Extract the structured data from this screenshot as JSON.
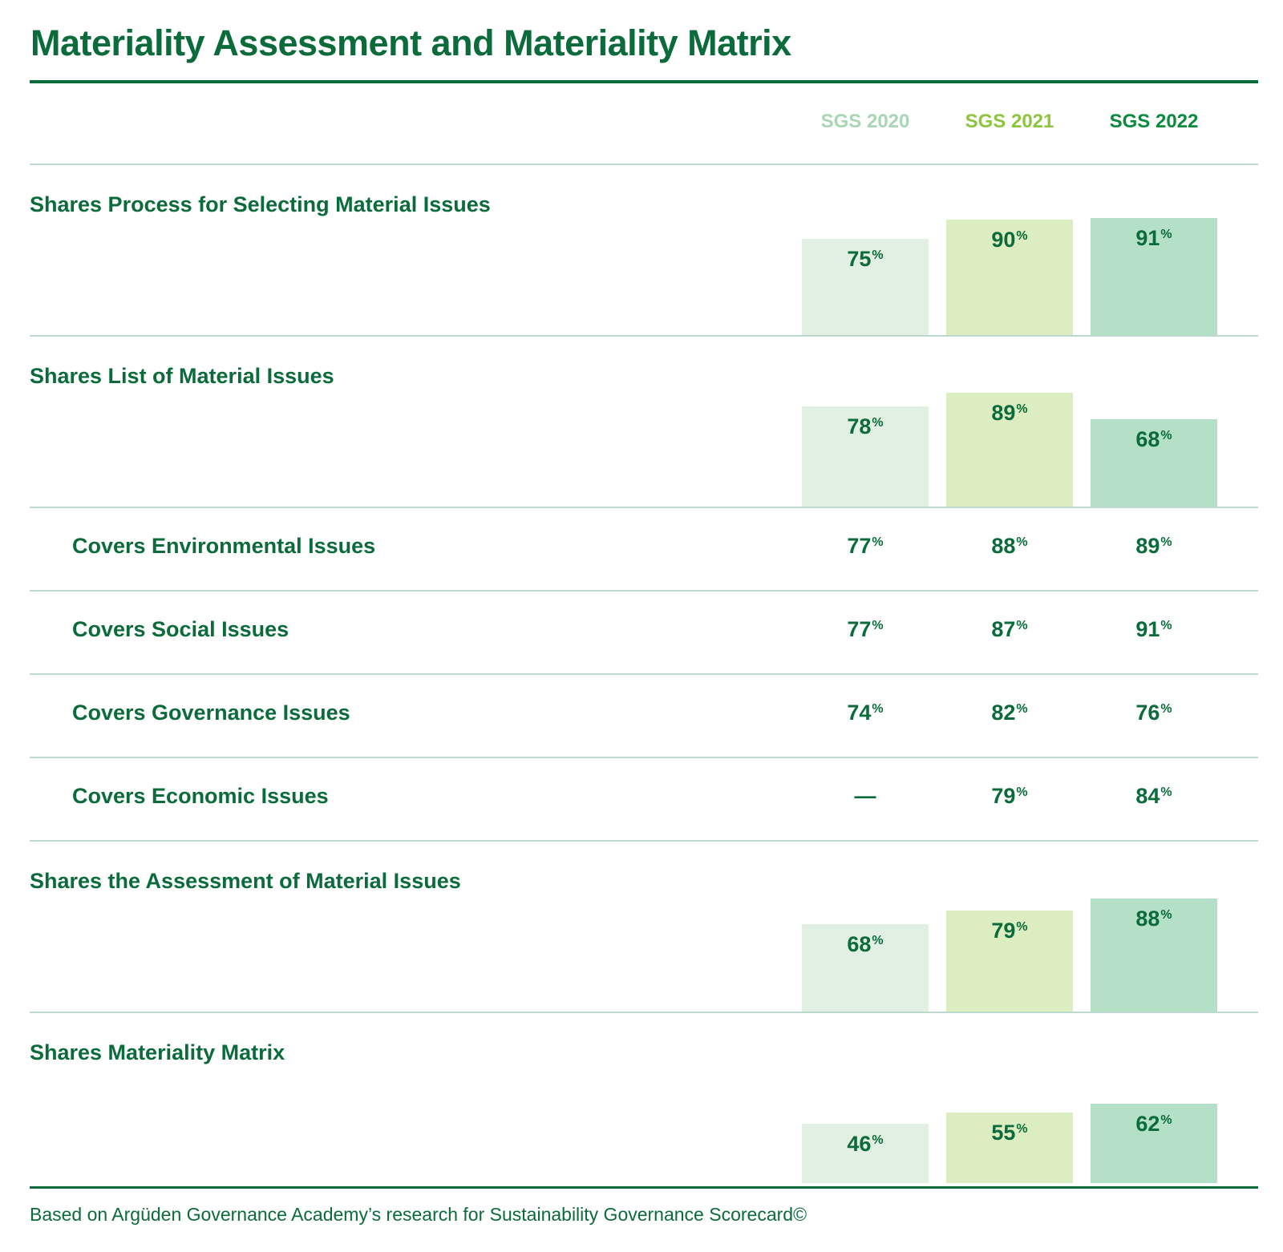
{
  "title": "Materiality Assessment and Materiality Matrix",
  "footnote": "Based on Argüden Governance Academy’s research for Sustainability Governance Scorecard©",
  "colors": {
    "primary": "#0b6b3a",
    "series": [
      "#a8d5b4",
      "#8cc63f",
      "#0b8a3e"
    ],
    "bars": [
      "#e2f0e4",
      "#ddedc2",
      "#b3e0c6"
    ],
    "rule": "#bdd9cf"
  },
  "chart_data": {
    "type": "bar",
    "unit": "%",
    "ylim": [
      0,
      100
    ],
    "series_names": [
      "SGS 2020",
      "SGS 2021",
      "SGS 2022"
    ],
    "rows": [
      {
        "label": "Shares Process for Selecting Material Issues",
        "indent": false,
        "style": "bar",
        "values": [
          75,
          90,
          91
        ]
      },
      {
        "label": "Shares List of Material Issues",
        "indent": false,
        "style": "bar",
        "values": [
          78,
          89,
          68
        ]
      },
      {
        "label": "Covers Environmental Issues",
        "indent": true,
        "style": "text",
        "values": [
          77,
          88,
          89
        ]
      },
      {
        "label": "Covers Social Issues",
        "indent": true,
        "style": "text",
        "values": [
          77,
          87,
          91
        ]
      },
      {
        "label": "Covers Governance Issues",
        "indent": true,
        "style": "text",
        "values": [
          74,
          82,
          76
        ]
      },
      {
        "label": "Covers Economic Issues",
        "indent": true,
        "style": "text",
        "values": [
          null,
          79,
          84
        ],
        "missing_text": "—"
      },
      {
        "label": "Shares the Assessment of Material Issues",
        "indent": false,
        "style": "bar",
        "values": [
          68,
          79,
          88
        ]
      },
      {
        "label": "Shares Materiality Matrix",
        "indent": false,
        "style": "bar",
        "values": [
          46,
          55,
          62
        ]
      }
    ]
  }
}
